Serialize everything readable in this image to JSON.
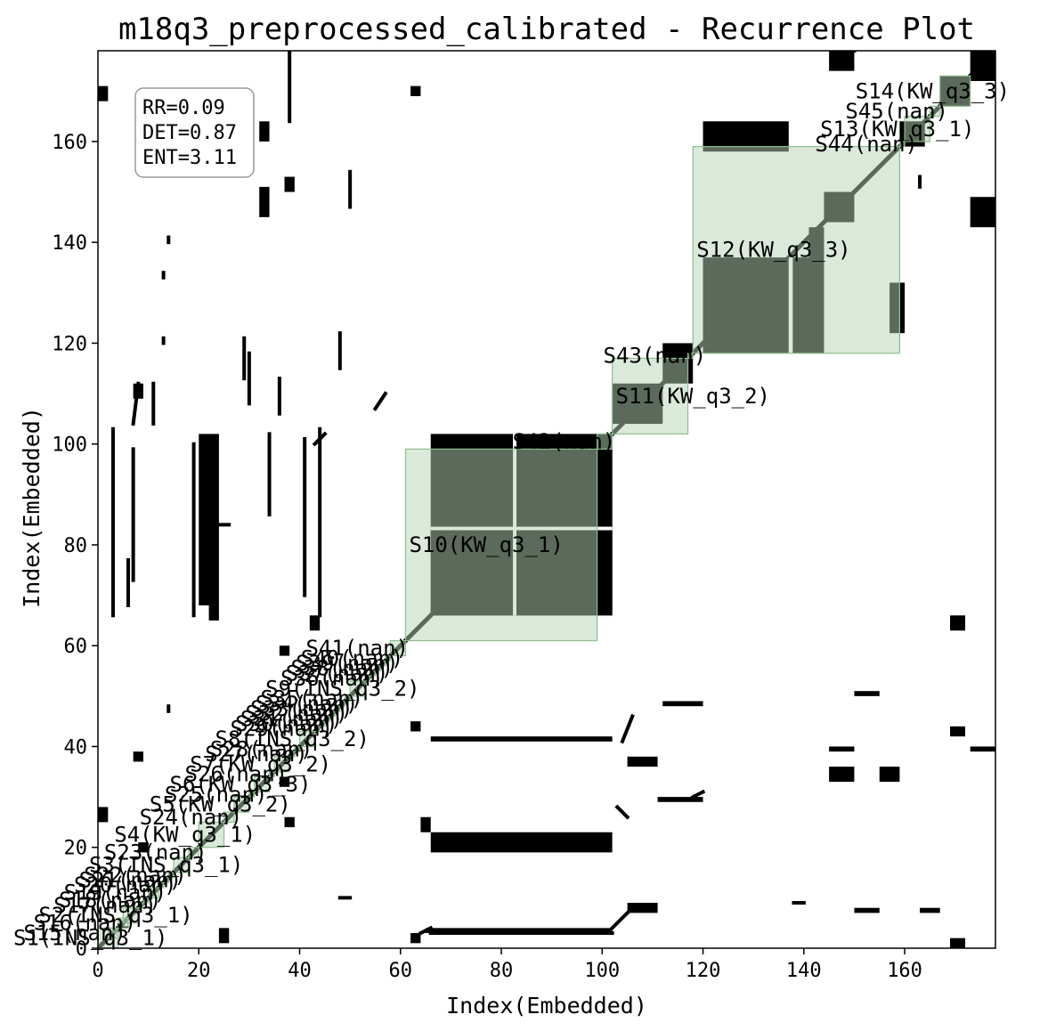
{
  "chart_data": {
    "type": "heatmap",
    "title": "m18q3_preprocessed_calibrated - Recurrence Plot",
    "xlabel": "Index(Embedded)",
    "ylabel": "Index(Embedded)",
    "xlim": [
      0,
      178
    ],
    "ylim": [
      0,
      178
    ],
    "x_ticks": [
      "0",
      "20",
      "40",
      "60",
      "80",
      "100",
      "120",
      "140",
      "160"
    ],
    "y_ticks": [
      "0",
      "20",
      "40",
      "60",
      "80",
      "100",
      "120",
      "140",
      "160"
    ],
    "x_tick_values": [
      0,
      20,
      40,
      60,
      80,
      100,
      120,
      140,
      160
    ],
    "y_tick_values": [
      0,
      20,
      40,
      60,
      80,
      100,
      120,
      140,
      160
    ],
    "stats": [
      "RR=0.09",
      "DET=0.87",
      "ENT=3.11"
    ],
    "colors": {
      "recurrence": "#000000",
      "segment_fill": "#b5d3b5",
      "segment_edge": "#8fbf8f",
      "background": "#ffffff"
    },
    "segments": [
      {
        "label": "S1(INS_q3_1)",
        "start": 0,
        "end": 4
      },
      {
        "label": "S15(nan)",
        "start": 2,
        "end": 4
      },
      {
        "label": "S16(nan)",
        "start": 4,
        "end": 6
      },
      {
        "label": "S2(INS_q3_1)",
        "start": 5,
        "end": 8
      },
      {
        "label": "S17(nan)",
        "start": 8,
        "end": 9
      },
      {
        "label": "S18(nan)",
        "start": 9,
        "end": 10
      },
      {
        "label": "S19(nan)",
        "start": 10,
        "end": 12
      },
      {
        "label": "S20(nan)",
        "start": 12,
        "end": 13
      },
      {
        "label": "S21(nan)",
        "start": 13,
        "end": 14
      },
      {
        "label": "S22(nan)",
        "start": 14,
        "end": 15
      },
      {
        "label": "S3(INS_q3_1)",
        "start": 15,
        "end": 18
      },
      {
        "label": "S23(nan)",
        "start": 18,
        "end": 20
      },
      {
        "label": "S4(KW_q3_1)",
        "start": 20,
        "end": 25
      },
      {
        "label": "S24(nan)",
        "start": 25,
        "end": 27
      },
      {
        "label": "S5(KW_q3_2)",
        "start": 27,
        "end": 30
      },
      {
        "label": "S25(nan)",
        "start": 30,
        "end": 31
      },
      {
        "label": "S6(KW_q3_3)",
        "start": 31,
        "end": 34
      },
      {
        "label": "S26(nan)",
        "start": 34,
        "end": 35
      },
      {
        "label": "S7(KW_q3_2)",
        "start": 35,
        "end": 38
      },
      {
        "label": "S27(nan)",
        "start": 38,
        "end": 39
      },
      {
        "label": "S28(nan)",
        "start": 39,
        "end": 40
      },
      {
        "label": "S8(INS_q3_2)",
        "start": 40,
        "end": 43
      },
      {
        "label": "S29(nan)",
        "start": 43,
        "end": 44
      },
      {
        "label": "S30(nan)",
        "start": 44,
        "end": 45
      },
      {
        "label": "S31(nan)",
        "start": 45,
        "end": 46
      },
      {
        "label": "S32(nan)",
        "start": 46,
        "end": 47
      },
      {
        "label": "S33(nan)",
        "start": 47,
        "end": 48
      },
      {
        "label": "S34(nan)",
        "start": 48,
        "end": 49
      },
      {
        "label": "S35(nan)",
        "start": 49,
        "end": 50
      },
      {
        "label": "S9(INS_q3_2)",
        "start": 50,
        "end": 53
      },
      {
        "label": "S36(nan)",
        "start": 53,
        "end": 54
      },
      {
        "label": "S37(nan)",
        "start": 54,
        "end": 55
      },
      {
        "label": "S38(nan)",
        "start": 55,
        "end": 56
      },
      {
        "label": "S39(nan)",
        "start": 56,
        "end": 57
      },
      {
        "label": "S40(nan)",
        "start": 57,
        "end": 58
      },
      {
        "label": "S41(nan)",
        "start": 58,
        "end": 61
      },
      {
        "label": "S10(KW_q3_1)",
        "start": 61,
        "end": 99
      },
      {
        "label": "S42(nan)",
        "start": 99,
        "end": 102
      },
      {
        "label": "S11(KW_q3_2)",
        "start": 102,
        "end": 117
      },
      {
        "label": "S43(nan)",
        "start": 117,
        "end": 118
      },
      {
        "label": "S12(KW_q3_3)",
        "start": 118,
        "end": 159
      },
      {
        "label": "S44(nan)",
        "start": 159,
        "end": 160
      },
      {
        "label": "S13(KW_q3_1)",
        "start": 160,
        "end": 165
      },
      {
        "label": "S45(nan)",
        "start": 165,
        "end": 167
      },
      {
        "label": "S14(KW_q3_3)",
        "start": 167,
        "end": 173
      }
    ],
    "recurrence_blocks": [
      {
        "x0": 66,
        "x1": 83,
        "y0": 66,
        "y1": 102
      },
      {
        "x0": 83,
        "x1": 102,
        "y0": 66,
        "y1": 102
      },
      {
        "x0": 66,
        "x1": 102,
        "y0": 66,
        "y1": 83
      },
      {
        "x0": 99,
        "x1": 102,
        "y0": 67,
        "y1": 102
      },
      {
        "x0": 102,
        "x1": 112,
        "y0": 104,
        "y1": 112
      },
      {
        "x0": 112,
        "x1": 118,
        "y0": 112,
        "y1": 120
      },
      {
        "x0": 120,
        "x1": 137,
        "y0": 118,
        "y1": 137
      },
      {
        "x0": 137,
        "x1": 141,
        "y0": 118,
        "y1": 137
      },
      {
        "x0": 141,
        "x1": 144,
        "y0": 118,
        "y1": 143
      },
      {
        "x0": 157,
        "x1": 160,
        "y0": 122,
        "y1": 132
      },
      {
        "x0": 120,
        "x1": 137,
        "y0": 158,
        "y1": 164
      },
      {
        "x0": 144,
        "x1": 150,
        "y0": 144,
        "y1": 150
      },
      {
        "x0": 159,
        "x1": 164,
        "y0": 159,
        "y1": 164
      },
      {
        "x0": 167,
        "x1": 173,
        "y0": 167,
        "y1": 173
      },
      {
        "x0": 145,
        "x1": 150,
        "y0": 174,
        "y1": 178
      },
      {
        "x0": 173,
        "x1": 178,
        "y0": 172,
        "y1": 178
      },
      {
        "x0": 173,
        "x1": 178,
        "y0": 143,
        "y1": 149
      },
      {
        "x0": 20,
        "x1": 24,
        "y0": 68,
        "y1": 102
      },
      {
        "x0": 66,
        "x1": 102,
        "y0": 19,
        "y1": 23
      },
      {
        "x0": 145,
        "x1": 150,
        "y0": 33,
        "y1": 36
      },
      {
        "x0": 155,
        "x1": 159,
        "y0": 33,
        "y1": 36
      },
      {
        "x0": 105,
        "x1": 111,
        "y0": 7,
        "y1": 9
      },
      {
        "x0": 105,
        "x1": 111,
        "y0": 36,
        "y1": 38
      },
      {
        "x0": 111,
        "x1": 120,
        "y0": 29,
        "y1": 30
      },
      {
        "x0": 112,
        "x1": 120,
        "y0": 48,
        "y1": 49
      },
      {
        "x0": 65,
        "x1": 102,
        "y0": 3,
        "y1": 4
      },
      {
        "x0": 66,
        "x1": 102,
        "y0": 41,
        "y1": 42
      },
      {
        "x0": 62,
        "x1": 64,
        "y0": 1,
        "y1": 3
      },
      {
        "x0": 62,
        "x1": 64,
        "y0": 43,
        "y1": 45
      },
      {
        "x0": 62,
        "x1": 64,
        "y0": 169,
        "y1": 171
      },
      {
        "x0": 24,
        "x1": 26,
        "y0": 1,
        "y1": 4
      },
      {
        "x0": 0,
        "x1": 2,
        "y0": 25,
        "y1": 28
      },
      {
        "x0": 0,
        "x1": 2,
        "y0": 168,
        "y1": 171
      },
      {
        "x0": 32,
        "x1": 34,
        "y0": 145,
        "y1": 151
      },
      {
        "x0": 32,
        "x1": 34,
        "y0": 160,
        "y1": 164
      },
      {
        "x0": 7,
        "x1": 9,
        "y0": 109,
        "y1": 112
      },
      {
        "x0": 169,
        "x1": 172,
        "y0": 63,
        "y1": 66
      },
      {
        "x0": 169,
        "x1": 172,
        "y0": 0,
        "y1": 2
      },
      {
        "x0": 169,
        "x1": 172,
        "y0": 42,
        "y1": 44
      },
      {
        "x0": 150,
        "x1": 155,
        "y0": 7,
        "y1": 8
      },
      {
        "x0": 163,
        "x1": 167,
        "y0": 7,
        "y1": 8
      },
      {
        "x0": 145,
        "x1": 150,
        "y0": 39,
        "y1": 40
      },
      {
        "x0": 150,
        "x1": 155,
        "y0": 50,
        "y1": 51
      },
      {
        "x0": 173,
        "x1": 178,
        "y0": 39,
        "y1": 40
      },
      {
        "x0": 37,
        "x1": 39,
        "y0": 24,
        "y1": 26
      },
      {
        "x0": 22,
        "x1": 24,
        "y0": 65,
        "y1": 68
      },
      {
        "x0": 42,
        "x1": 44,
        "y0": 63,
        "y1": 66
      },
      {
        "x0": 64,
        "x1": 66,
        "y0": 23,
        "y1": 26
      },
      {
        "x0": 36,
        "x1": 38,
        "y0": 32,
        "y1": 34
      },
      {
        "x0": 7,
        "x1": 9,
        "y0": 37,
        "y1": 39
      },
      {
        "x0": 36,
        "x1": 38,
        "y0": 58,
        "y1": 60
      },
      {
        "x0": 8,
        "x1": 10,
        "y0": 19,
        "y1": 21
      },
      {
        "x0": 24,
        "x1": 26,
        "y0": 156,
        "y1": 160
      },
      {
        "x0": 37,
        "x1": 39,
        "y0": 150,
        "y1": 153
      }
    ],
    "recurrence_lines": [
      {
        "x0": 3,
        "y0": 66,
        "x1": 3,
        "y1": 103
      },
      {
        "x0": 7,
        "y0": 99,
        "x1": 7,
        "y1": 73
      },
      {
        "x0": 6,
        "y0": 77,
        "x1": 6,
        "y1": 68
      },
      {
        "x0": 44,
        "y0": 66,
        "x1": 44,
        "y1": 103
      },
      {
        "x0": 41,
        "y0": 70,
        "x1": 41,
        "y1": 101
      },
      {
        "x0": 19,
        "y0": 66,
        "x1": 19,
        "y1": 100
      },
      {
        "x0": 7,
        "y0": 104,
        "x1": 8,
        "y1": 112
      },
      {
        "x0": 11,
        "y0": 104,
        "x1": 11,
        "y1": 112
      },
      {
        "x0": 29,
        "y0": 113,
        "x1": 29,
        "y1": 121
      },
      {
        "x0": 36,
        "y0": 106,
        "x1": 36,
        "y1": 113
      },
      {
        "x0": 48,
        "y0": 115,
        "x1": 48,
        "y1": 122
      },
      {
        "x0": 30,
        "y0": 108,
        "x1": 30,
        "y1": 118
      },
      {
        "x0": 38,
        "y0": 164,
        "x1": 38,
        "y1": 178
      },
      {
        "x0": 146,
        "y0": 178,
        "x1": 150,
        "y1": 178
      },
      {
        "x0": 104,
        "y0": 41,
        "x1": 106,
        "y1": 46
      },
      {
        "x0": 66,
        "y0": 3,
        "x1": 102,
        "y1": 3
      },
      {
        "x0": 102,
        "y0": 4,
        "x1": 105,
        "y1": 7
      },
      {
        "x0": 103,
        "y0": 28,
        "x1": 105,
        "y1": 26
      },
      {
        "x0": 118,
        "y0": 30,
        "x1": 120,
        "y1": 31
      },
      {
        "x0": 138,
        "y0": 9,
        "x1": 140,
        "y1": 9
      },
      {
        "x0": 48,
        "y0": 10,
        "x1": 50,
        "y1": 10
      },
      {
        "x0": 64,
        "y0": 3,
        "x1": 66,
        "y1": 4
      },
      {
        "x0": 14,
        "y0": 47,
        "x1": 14,
        "y1": 48
      },
      {
        "x0": 13,
        "y0": 120,
        "x1": 13,
        "y1": 121
      },
      {
        "x0": 14,
        "y0": 140,
        "x1": 14,
        "y1": 141
      },
      {
        "x0": 13,
        "y0": 133,
        "x1": 13,
        "y1": 134
      },
      {
        "x0": 57,
        "y0": 110,
        "x1": 55,
        "y1": 107
      },
      {
        "x0": 50,
        "y0": 154,
        "x1": 50,
        "y1": 147
      },
      {
        "x0": 163,
        "y0": 151,
        "x1": 163,
        "y1": 153
      },
      {
        "x0": 34,
        "y0": 86,
        "x1": 34,
        "y1": 102
      },
      {
        "x0": 23,
        "y0": 84,
        "x1": 26,
        "y1": 84
      },
      {
        "x0": 43,
        "y0": 100,
        "x1": 45,
        "y1": 102
      }
    ]
  }
}
